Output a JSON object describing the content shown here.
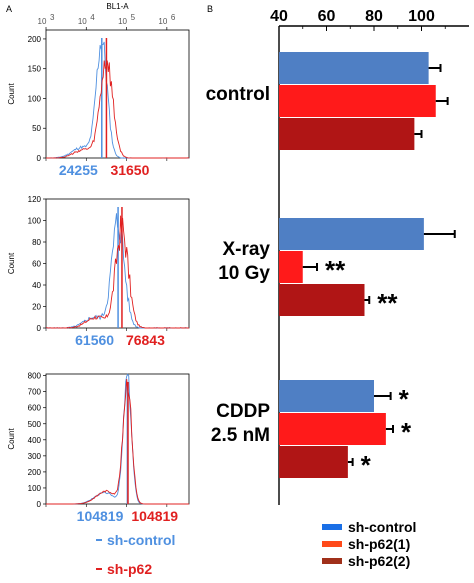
{
  "panel_labels": {
    "a": "A",
    "b": "B"
  },
  "colors": {
    "sh_control_hist": "#4f90e0",
    "sh_p62_hist": "#e02020",
    "bar_sh_control": "#4f7fc4",
    "bar_sh_p62_1": "#ff1a1a",
    "bar_sh_p62_2": "#b01515"
  },
  "chart_data": [
    {
      "type": "line",
      "xlabel": "BL1-A",
      "x_ticks": [
        "10",
        "10",
        "10",
        "10"
      ],
      "x_tick_exponents": [
        "3",
        "4",
        "5",
        "6"
      ],
      "ylabel": "Count",
      "y_ticks": [
        "0",
        "50",
        "100",
        "150",
        "200"
      ],
      "ylim": [
        0,
        215
      ],
      "series": [
        {
          "name": "sh-control",
          "median": 24255,
          "median_label": "24255"
        },
        {
          "name": "sh-p62",
          "median": 31650,
          "median_label": "31650"
        }
      ]
    },
    {
      "type": "line",
      "ylabel": "Count",
      "y_ticks": [
        "0",
        "20",
        "40",
        "60",
        "80",
        "100",
        "120"
      ],
      "ylim": [
        0,
        120
      ],
      "series": [
        {
          "name": "sh-control",
          "median": 61560,
          "median_label": "61560"
        },
        {
          "name": "sh-p62",
          "median": 76843,
          "median_label": "76843"
        }
      ]
    },
    {
      "type": "line",
      "ylabel": "Count",
      "y_ticks": [
        "0",
        "100",
        "200",
        "300",
        "400",
        "500",
        "600",
        "700",
        "800"
      ],
      "ylim": [
        0,
        810
      ],
      "series": [
        {
          "name": "sh-control",
          "median": 104819,
          "median_label": "104819"
        },
        {
          "name": "sh-p62",
          "median": 104819,
          "median_label": "104819"
        }
      ]
    },
    {
      "type": "bar",
      "orientation": "horizontal",
      "x_ticks": [
        "40",
        "60",
        "80",
        "100"
      ],
      "xlim": [
        40,
        120
      ],
      "categories": [
        "control",
        "X-ray\n10 Gy",
        "CDDP\n2.5 nM"
      ],
      "series": [
        {
          "name": "sh-control",
          "values": [
            103,
            101,
            80
          ],
          "errors": [
            5,
            13,
            7
          ],
          "significance": [
            "",
            "",
            "*"
          ]
        },
        {
          "name": "sh-p62(1)",
          "values": [
            106,
            50,
            85
          ],
          "errors": [
            5,
            6,
            3
          ],
          "significance": [
            "",
            "**",
            "*"
          ]
        },
        {
          "name": "sh-p62(2)",
          "values": [
            97,
            76,
            69
          ],
          "errors": [
            3,
            2,
            2
          ],
          "significance": [
            "",
            "**",
            "*"
          ]
        }
      ]
    }
  ],
  "left_legend": [
    {
      "label": "sh-control",
      "color": "#4f90e0"
    },
    {
      "label": "sh-p62",
      "color": "#e02020"
    }
  ],
  "right_legend": [
    {
      "label": "sh-control",
      "color": "#1a6fe6"
    },
    {
      "label": "sh-p62(1)",
      "color": "#ff4a1a"
    },
    {
      "label": "sh-p62(2)",
      "color": "#a0301a"
    }
  ]
}
